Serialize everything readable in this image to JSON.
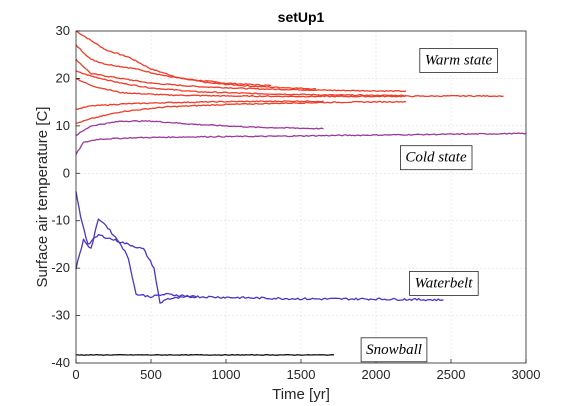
{
  "chart_data": {
    "type": "line",
    "title": "setUp1",
    "xlabel": "Time [yr]",
    "ylabel": "Surface air temperature [C]",
    "xlim": [
      0,
      3000
    ],
    "ylim": [
      -40,
      30
    ],
    "xticks": [
      0,
      500,
      1000,
      1500,
      2000,
      2500,
      3000
    ],
    "yticks": [
      -40,
      -30,
      -20,
      -10,
      0,
      10,
      20,
      30
    ],
    "grid": true,
    "colors": {
      "warm": "#f03c28",
      "cold": "#9a3a9a",
      "waterbelt": "#4a35c6",
      "snowball": "#111111"
    },
    "series": [
      {
        "group": "warm",
        "x": [
          0,
          100,
          200,
          350,
          500,
          700,
          1000,
          1300
        ],
        "y": [
          30,
          28,
          26,
          24.5,
          22,
          20,
          19,
          18.5
        ]
      },
      {
        "group": "warm",
        "x": [
          0,
          100,
          200,
          400,
          600,
          900,
          1200,
          1600
        ],
        "y": [
          27,
          24,
          23,
          22,
          20.5,
          19,
          18.3,
          17.8
        ]
      },
      {
        "group": "warm",
        "x": [
          0,
          100,
          300,
          500,
          800,
          1200,
          1700,
          2200
        ],
        "y": [
          24,
          21,
          20,
          19,
          18.3,
          17.8,
          17.5,
          17.3
        ]
      },
      {
        "group": "warm",
        "x": [
          0,
          100,
          300,
          500,
          800,
          1200,
          1700,
          2200
        ],
        "y": [
          21.5,
          20.5,
          19,
          18,
          17.2,
          16.8,
          16.5,
          16.4
        ]
      },
      {
        "group": "warm",
        "x": [
          0,
          100,
          300,
          600,
          1000,
          1500,
          2000,
          2500,
          2850
        ],
        "y": [
          20,
          18.5,
          17,
          16.5,
          16.3,
          16.2,
          16.2,
          16.3,
          16.3
        ]
      },
      {
        "group": "warm",
        "x": [
          0,
          100,
          300,
          600,
          1000,
          1400,
          1650
        ],
        "y": [
          13.5,
          14.2,
          14.6,
          14.9,
          15.1,
          15.2,
          15.2
        ]
      },
      {
        "group": "warm",
        "x": [
          0,
          100,
          300,
          600,
          1000,
          1400,
          1800,
          2200
        ],
        "y": [
          10.5,
          11.5,
          13,
          14,
          14.5,
          14.8,
          15,
          15.1
        ]
      },
      {
        "group": "cold",
        "x": [
          0,
          100,
          300,
          500,
          800,
          1200,
          1650
        ],
        "y": [
          8,
          10,
          11,
          11,
          10.3,
          9.7,
          9.4
        ]
      },
      {
        "group": "cold",
        "x": [
          0,
          50,
          150,
          400,
          800,
          1300,
          1800,
          2400,
          3000
        ],
        "y": [
          4,
          6.5,
          7.2,
          7.5,
          7.7,
          7.8,
          8,
          8.2,
          8.4
        ]
      },
      {
        "group": "waterbelt",
        "x": [
          0,
          30,
          80,
          150,
          250,
          350,
          450,
          520,
          560,
          600,
          800,
          1200,
          1600,
          2000,
          2450
        ],
        "y": [
          -4,
          -9,
          -15,
          -13,
          -14,
          -15,
          -16,
          -20,
          -27.5,
          -26.5,
          -26,
          -26.3,
          -26.5,
          -26.5,
          -26.7
        ]
      },
      {
        "group": "waterbelt",
        "x": [
          0,
          50,
          100,
          150,
          200,
          300,
          350,
          400,
          500,
          600,
          800
        ],
        "y": [
          -20,
          -14,
          -16,
          -9.5,
          -11,
          -15,
          -18,
          -25.5,
          -26,
          -25.5,
          -26
        ]
      },
      {
        "group": "snowball",
        "x": [
          0,
          500,
          1000,
          1500,
          1720
        ],
        "y": [
          -38.3,
          -38.3,
          -38.3,
          -38.3,
          -38.3
        ]
      }
    ],
    "annotations": [
      {
        "text": "Warm state",
        "x": 2550,
        "y": 24
      },
      {
        "text": "Cold state",
        "x": 2400,
        "y": 3.5
      },
      {
        "text": "Waterbelt",
        "x": 2450,
        "y": -23
      },
      {
        "text": "Snowball",
        "x": 2120,
        "y": -37
      }
    ]
  }
}
